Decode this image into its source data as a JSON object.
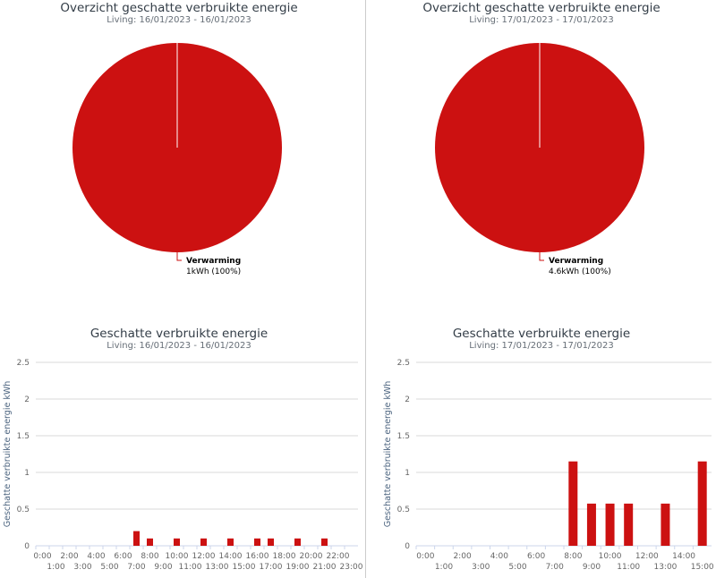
{
  "colors": {
    "series": "#cc1111",
    "grid": "#d8d8d8",
    "axis": "#ccd6eb"
  },
  "chart_data": [
    {
      "type": "pie",
      "title": "Overzicht geschatte verbruikte energie",
      "subtitle": "Living: 16/01/2023 - 16/01/2023",
      "slices": [
        {
          "name": "Verwarming",
          "value": 1,
          "label": "1kWh (100%)"
        }
      ]
    },
    {
      "type": "pie",
      "title": "Overzicht geschatte verbruikte energie",
      "subtitle": "Living: 17/01/2023 - 17/01/2023",
      "slices": [
        {
          "name": "Verwarming",
          "value": 4.6,
          "label": "4.6kWh (100%)"
        }
      ]
    },
    {
      "type": "bar",
      "title": "Geschatte verbruikte energie",
      "subtitle": "Living: 16/01/2023 - 16/01/2023",
      "ylabel": "Geschatte verbruikte energie kWh",
      "ylim": [
        0,
        2.5
      ],
      "yticks": [
        "0",
        "0.5",
        "1",
        "1.5",
        "2",
        "2.5"
      ],
      "categories": [
        "0:00",
        "1:00",
        "2:00",
        "3:00",
        "4:00",
        "5:00",
        "6:00",
        "7:00",
        "8:00",
        "9:00",
        "10:00",
        "11:00",
        "12:00",
        "13:00",
        "14:00",
        "15:00",
        "16:00",
        "17:00",
        "18:00",
        "19:00",
        "20:00",
        "21:00",
        "22:00",
        "23:00"
      ],
      "values": [
        0,
        0,
        0,
        0,
        0,
        0,
        0,
        0.2,
        0.1,
        0,
        0.1,
        0,
        0.1,
        0,
        0.1,
        0,
        0.1,
        0.1,
        0,
        0.1,
        0,
        0.1,
        0,
        0
      ]
    },
    {
      "type": "bar",
      "title": "Geschatte verbruikte energie",
      "subtitle": "Living: 17/01/2023 - 17/01/2023",
      "ylabel": "Geschatte verbruikte energie kWh",
      "ylim": [
        0,
        2.5
      ],
      "yticks": [
        "0",
        "0.5",
        "1",
        "1.5",
        "2",
        "2.5"
      ],
      "categories": [
        "0:00",
        "1:00",
        "2:00",
        "3:00",
        "4:00",
        "5:00",
        "6:00",
        "7:00",
        "8:00",
        "9:00",
        "10:00",
        "11:00",
        "12:00",
        "13:00",
        "14:00",
        "15:00"
      ],
      "values": [
        0,
        0,
        0,
        0,
        0,
        0,
        0,
        0,
        1.15,
        0.575,
        0.575,
        0.575,
        0,
        0.575,
        0,
        1.15
      ]
    }
  ]
}
